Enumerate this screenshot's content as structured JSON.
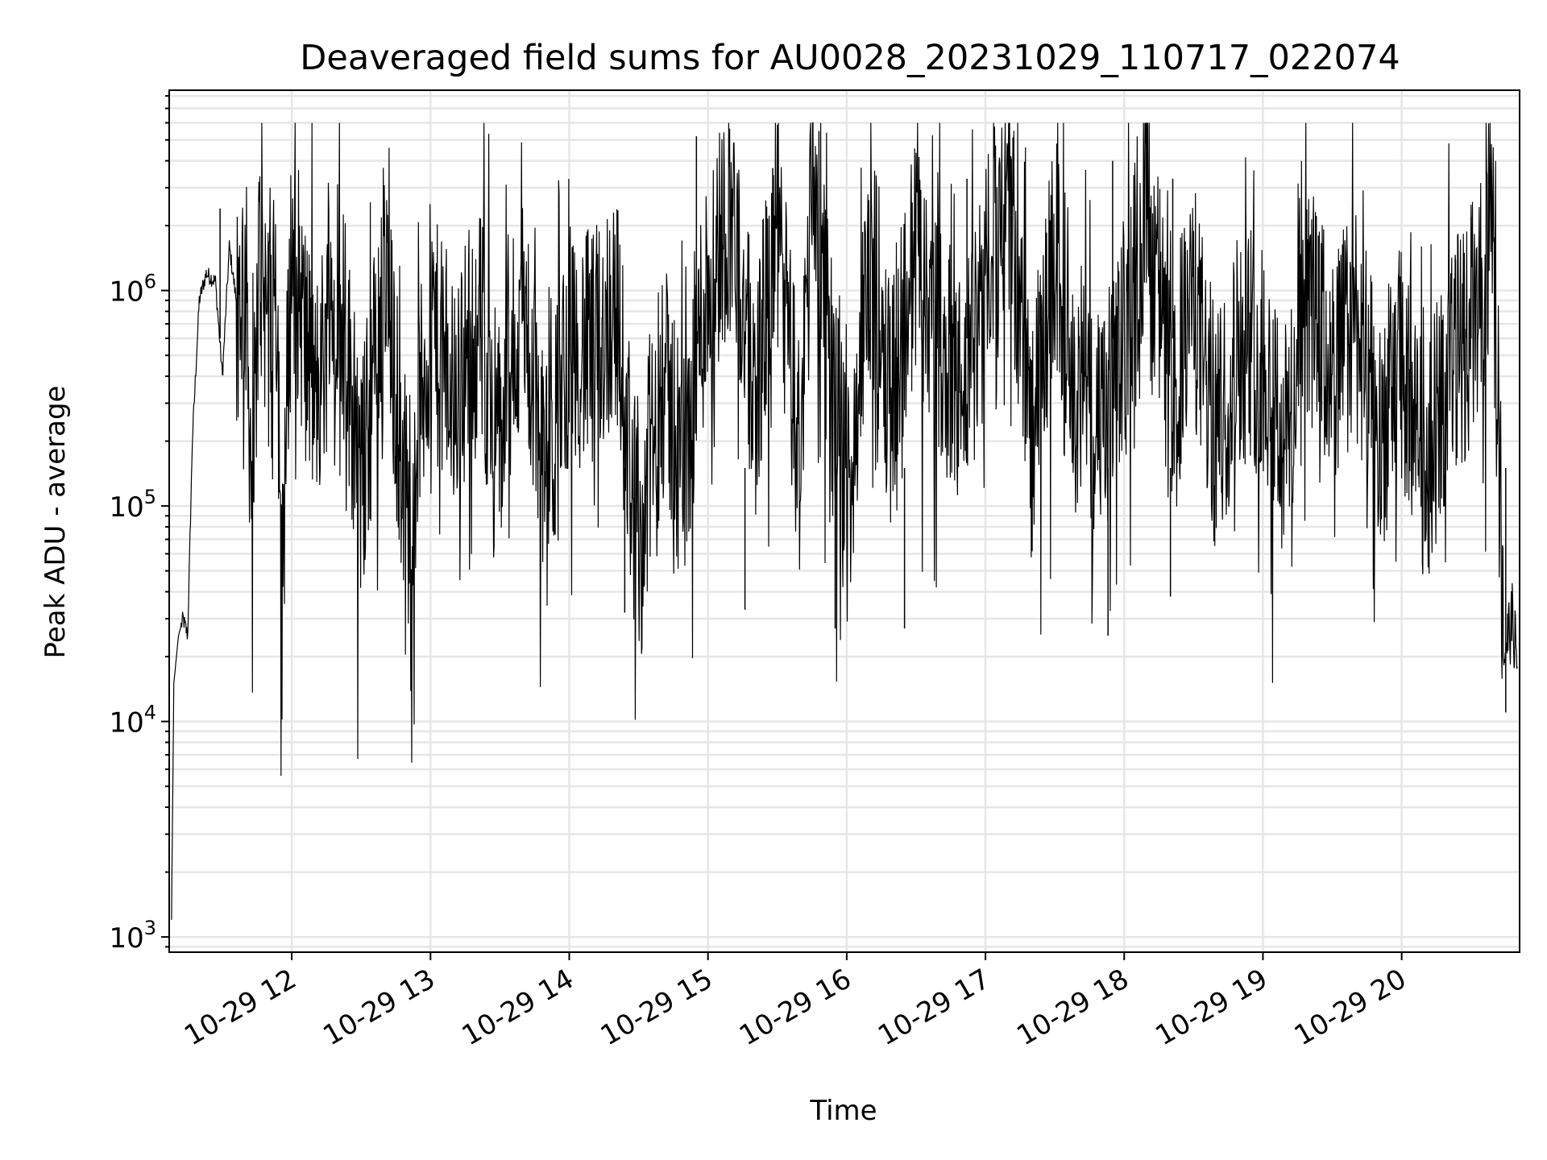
{
  "chart_data": {
    "type": "line",
    "title": "Deaveraged field sums for AU0028_20231029_110717_022074",
    "xlabel": "Time",
    "ylabel": "Peak ADU - average",
    "yscale": "log",
    "xlim": [
      "2023-10-29 11:07",
      "2023-10-29 20:51"
    ],
    "ylim": [
      850,
      8500000
    ],
    "grid": true,
    "xticks": [
      {
        "value": "2023-10-29 12:00",
        "label": "10-29 12"
      },
      {
        "value": "2023-10-29 13:00",
        "label": "10-29 13"
      },
      {
        "value": "2023-10-29 14:00",
        "label": "10-29 14"
      },
      {
        "value": "2023-10-29 15:00",
        "label": "10-29 15"
      },
      {
        "value": "2023-10-29 16:00",
        "label": "10-29 16"
      },
      {
        "value": "2023-10-29 17:00",
        "label": "10-29 17"
      },
      {
        "value": "2023-10-29 18:00",
        "label": "10-29 18"
      },
      {
        "value": "2023-10-29 19:00",
        "label": "10-29 19"
      },
      {
        "value": "2023-10-29 20:00",
        "label": "10-29 20"
      }
    ],
    "yticks": [
      {
        "value": 1000,
        "base": "10",
        "exp": "3"
      },
      {
        "value": 10000,
        "base": "10",
        "exp": "4"
      },
      {
        "value": 100000,
        "base": "10",
        "exp": "5"
      },
      {
        "value": 1000000,
        "base": "10",
        "exp": "6"
      }
    ],
    "series": [
      {
        "color": "#000000",
        "x": [
          "2023-10-29 11:08",
          "2023-10-29 11:09",
          "2023-10-29 11:11",
          "2023-10-29 11:13",
          "2023-10-29 11:15",
          "2023-10-29 11:17",
          "2023-10-29 11:20",
          "2023-10-29 11:23",
          "2023-10-29 11:27",
          "2023-10-29 11:30",
          "2023-10-29 11:33",
          "2023-10-29 11:36",
          "2023-10-29 11:40",
          "2023-10-29 11:43",
          "2023-10-29 11:46",
          "2023-10-29 11:50",
          "2023-10-29 11:53",
          "2023-10-29 11:56",
          "2023-10-29 12:00",
          "2023-10-29 12:10",
          "2023-10-29 12:20",
          "2023-10-29 12:30",
          "2023-10-29 12:40",
          "2023-10-29 12:50",
          "2023-10-29 13:00",
          "2023-10-29 13:10",
          "2023-10-29 13:20",
          "2023-10-29 13:30",
          "2023-10-29 13:40",
          "2023-10-29 13:50",
          "2023-10-29 14:00",
          "2023-10-29 14:10",
          "2023-10-29 14:20",
          "2023-10-29 14:30",
          "2023-10-29 14:40",
          "2023-10-29 14:50",
          "2023-10-29 14:55",
          "2023-10-29 15:00",
          "2023-10-29 15:10",
          "2023-10-29 15:20",
          "2023-10-29 15:30",
          "2023-10-29 15:40",
          "2023-10-29 15:45",
          "2023-10-29 15:50",
          "2023-10-29 16:00",
          "2023-10-29 16:10",
          "2023-10-29 16:20",
          "2023-10-29 16:30",
          "2023-10-29 16:40",
          "2023-10-29 16:50",
          "2023-10-29 17:00",
          "2023-10-29 17:10",
          "2023-10-29 17:20",
          "2023-10-29 17:30",
          "2023-10-29 17:40",
          "2023-10-29 17:50",
          "2023-10-29 18:00",
          "2023-10-29 18:10",
          "2023-10-29 18:20",
          "2023-10-29 18:30",
          "2023-10-29 18:40",
          "2023-10-29 18:50",
          "2023-10-29 19:00",
          "2023-10-29 19:10",
          "2023-10-29 19:20",
          "2023-10-29 19:30",
          "2023-10-29 19:40",
          "2023-10-29 19:50",
          "2023-10-29 20:00",
          "2023-10-29 20:10",
          "2023-10-29 20:20",
          "2023-10-29 20:30",
          "2023-10-29 20:35",
          "2023-10-29 20:38",
          "2023-10-29 20:40",
          "2023-10-29 20:42",
          "2023-10-29 20:44",
          "2023-10-29 20:46",
          "2023-10-29 20:48",
          "2023-10-29 20:50"
        ],
        "y": [
          1200,
          15000,
          25000,
          30000,
          25000,
          200000,
          900000,
          1200000,
          1100000,
          400000,
          1600000,
          900000,
          1200000,
          100000,
          1500000,
          700000,
          1600000,
          60000,
          1700000,
          300000,
          1300000,
          120000,
          1200000,
          90000,
          700000,
          300000,
          800000,
          200000,
          900000,
          120000,
          600000,
          500000,
          900000,
          60000,
          400000,
          150000,
          500000,
          1100000,
          2500000,
          300000,
          2000000,
          150000,
          5000000,
          900000,
          100000,
          1300000,
          400000,
          1500000,
          600000,
          300000,
          1000000,
          3000000,
          200000,
          1500000,
          400000,
          200000,
          600000,
          3000000,
          300000,
          900000,
          200000,
          600000,
          500000,
          200000,
          900000,
          400000,
          800000,
          200000,
          500000,
          150000,
          400000,
          700000,
          900000,
          1800000,
          1200000,
          200000,
          20000,
          25000,
          30000,
          18000
        ],
        "spikes": [
          {
            "x": "2023-10-29 11:29",
            "y": 2400000
          },
          {
            "x": "2023-10-29 14:55",
            "y": 5200000
          },
          {
            "x": "2023-10-29 15:28",
            "y": 3700000
          },
          {
            "x": "2023-10-29 15:48",
            "y": 5500000
          },
          {
            "x": "2023-10-29 16:52",
            "y": 3300000
          },
          {
            "x": "2023-10-29 17:11",
            "y": 4200000
          },
          {
            "x": "2023-10-29 17:55",
            "y": 4000000
          },
          {
            "x": "2023-10-29 18:21",
            "y": 3300000
          },
          {
            "x": "2023-10-29 19:24",
            "y": 1800000
          },
          {
            "x": "2023-10-29 20:30",
            "y": 2200000
          }
        ],
        "dips": [
          {
            "x": "2023-10-29 14:24",
            "y": 32000
          },
          {
            "x": "2023-10-29 15:16",
            "y": 33000
          },
          {
            "x": "2023-10-29 15:55",
            "y": 27000
          },
          {
            "x": "2023-10-29 16:25",
            "y": 27000
          },
          {
            "x": "2023-10-29 17:53",
            "y": 25000
          },
          {
            "x": "2023-10-29 18:20",
            "y": 38000
          },
          {
            "x": "2023-10-29 20:45",
            "y": 11000
          }
        ]
      }
    ]
  }
}
